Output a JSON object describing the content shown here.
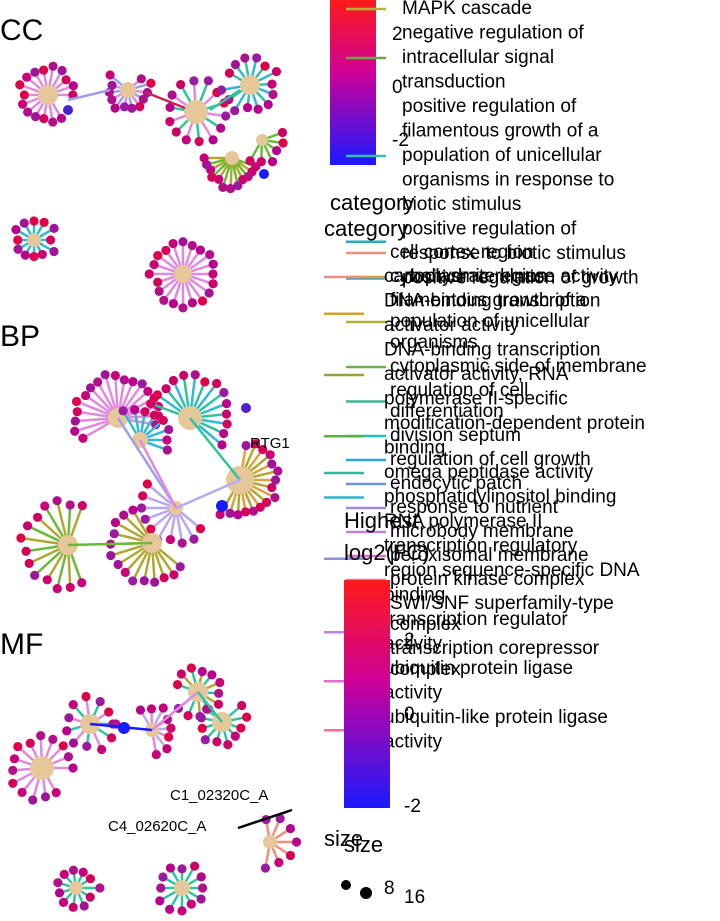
{
  "panels": {
    "cc": "CC",
    "bp": "BP",
    "mf": "MF"
  },
  "node_labels": {
    "rtg1": "RTG1",
    "c1": "C1_02320C_A",
    "c4": "C4_02620C_A"
  },
  "colorbar": {
    "ticks": [
      "2",
      "0",
      "-2"
    ],
    "title_line1": "Highest",
    "title_line2": "log2(FC)",
    "ticks2": [
      "2",
      "0",
      "-2"
    ],
    "colors": {
      "high": "#ff1a1a",
      "mid": "#cc0099",
      "low": "#1a1aff"
    }
  },
  "category_titles": [
    "category",
    "category"
  ],
  "legend_group1": [
    {
      "label": "MAPK cascade",
      "color": "#b5b23a"
    },
    {
      "label": "negative regulation of\nintracellular signal\ntransduction",
      "color": "#6aaa3a"
    },
    {
      "label": "positive regulation of\nfilamentous growth of a\npopulation of unicellular\norganisms in response to\nbiotic stimulus",
      "color": "#2ec4a0"
    },
    {
      "label": "positive regulation of\nresponse to biotic stimulus",
      "color": "#2aa8c8"
    },
    {
      "label": "positive regulation of growth",
      "color": "#3aa0d8"
    }
  ],
  "legend_cc": [
    {
      "label": "cell cortex region",
      "color": "#e89080"
    },
    {
      "label": "cytoplasmic region",
      "color": "#d4a030"
    },
    {
      "label": "filamentous growth of a\npopulation of unicellular\norganisms",
      "color": "#b0b030"
    },
    {
      "label": "cytoplasmic side of membrane",
      "color": "#6ab04a"
    },
    {
      "label": "regulation of cell\ndifferentiation",
      "color": "#3ab890"
    },
    {
      "label": "division septum",
      "color": "#20c0b0"
    },
    {
      "label": "regulation of cell growth",
      "color": "#30a8d0"
    },
    {
      "label": "endocytic patch",
      "color": "#7090e0"
    },
    {
      "label": "response to nutrient",
      "color": "#a08ae0"
    },
    {
      "label": "microbody membrane",
      "color": "#c080e0"
    },
    {
      "label": "peroxisomal membrane",
      "color": "#e070d0"
    },
    {
      "label": "protein kinase complex",
      "color": "#f070b0"
    },
    {
      "label": "SWI/SNF superfamily-type\ncomplex",
      "color": "#2090c8"
    },
    {
      "label": "transcription corepressor\ncomplex",
      "color": "#9090e0"
    }
  ],
  "legend_mf": [
    {
      "label": "carbohydrate kinase activity",
      "color": "#e89080"
    },
    {
      "label": "DNA-binding transcription\nactivator activity",
      "color": "#d4a030"
    },
    {
      "label": "DNA-binding transcription\nactivator activity, RNA\npolymerase II-specific",
      "color": "#a0a030"
    },
    {
      "label": "modification-dependent protein\nbinding",
      "color": "#60b040"
    },
    {
      "label": "omega peptidase activity",
      "color": "#30b8a0"
    },
    {
      "label": "phosphatidylinositol binding",
      "color": "#28b8c8"
    },
    {
      "label": "RNA polymerase II\ntranscription regulatory\nregion sequence-specific DNA\nbinding",
      "color": "#8a90e0"
    },
    {
      "label": "transcription regulator\nactivity",
      "color": "#c080e0"
    },
    {
      "label": "ubiquitin protein ligase\nactivity",
      "color": "#e070d0"
    },
    {
      "label": "ubiquitin-like protein ligase\nactivity",
      "color": "#f070a0"
    }
  ],
  "size_legend": {
    "title": "size",
    "title2": "size",
    "values": [
      "8",
      "16"
    ]
  }
}
